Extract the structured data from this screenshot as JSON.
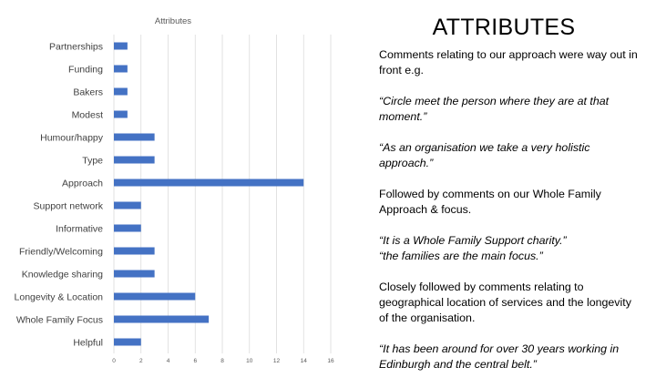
{
  "chart_data": {
    "type": "bar",
    "orientation": "horizontal",
    "title": "Attributes",
    "categories": [
      "Partnerships",
      "Funding",
      "Bakers",
      "Modest",
      "Humour/happy",
      "Type",
      "Approach",
      "Support network",
      "Informative",
      "Friendly/Welcoming",
      "Knowledge sharing",
      "Longevity & Location",
      "Whole Family Focus",
      "Helpful"
    ],
    "values": [
      1,
      1,
      1,
      1,
      3,
      3,
      14,
      2,
      2,
      3,
      3,
      6,
      7,
      2
    ],
    "xlim": [
      0,
      16
    ],
    "xticks": [
      0,
      2,
      4,
      6,
      8,
      10,
      12,
      14,
      16
    ],
    "grid": true,
    "legend": "none",
    "bar_color": "#4472C4"
  },
  "slide": {
    "title": "ATTRIBUTES",
    "para1": "Comments relating to our approach were way out in front e.g.",
    "quote1": "“Circle meet the person where they are at that moment.”",
    "quote2": "“As an organisation we take a very holistic approach.”",
    "para2": "Followed by comments on our Whole Family Approach & focus.",
    "quote3": "“It is a Whole Family Support charity.”",
    "quote4": "“the families are the main focus.”",
    "para3": "Closely followed by comments relating to geographical location of services and the longevity of the organisation.",
    "quote5": "“It has been around for over 30 years working in Edinburgh and the central belt.”"
  }
}
